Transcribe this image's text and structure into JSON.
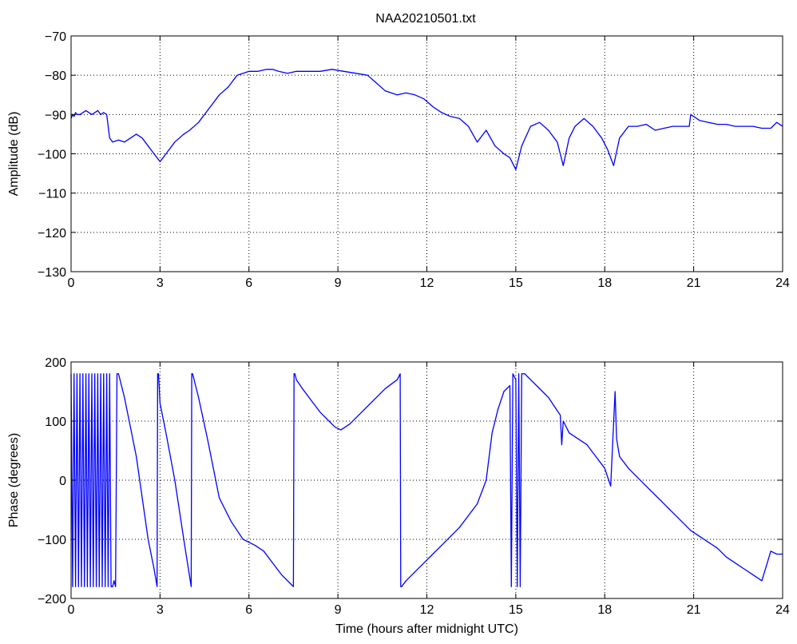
{
  "figure": {
    "title": "NAA20210501.txt"
  },
  "chart_data": [
    {
      "type": "line",
      "title": "NAA20210501.txt",
      "xlabel": "",
      "ylabel": "Amplitude (dB)",
      "xlim": [
        0,
        24
      ],
      "ylim": [
        -130,
        -70
      ],
      "xticks": [
        0,
        3,
        6,
        9,
        12,
        15,
        18,
        21,
        24
      ],
      "xtick_labels": [
        "0",
        "3",
        "6",
        "9",
        "12",
        "15",
        "18",
        "21",
        "24"
      ],
      "yticks": [
        -70,
        -80,
        -90,
        -100,
        -110,
        -120,
        -130
      ],
      "ytick_labels": [
        "−70",
        "−80",
        "−90",
        "−100",
        "−110",
        "−120",
        "−130"
      ],
      "grid": true,
      "color": "#0000ff",
      "series": [
        {
          "x": [
            0.0,
            0.05,
            0.1,
            0.15,
            0.2,
            0.3,
            0.4,
            0.5,
            0.6,
            0.7,
            0.8,
            0.9,
            1.0,
            1.1,
            1.2,
            1.3,
            1.4,
            1.6,
            1.8,
            2.0,
            2.2,
            2.4,
            2.6,
            2.8,
            3.0,
            3.2,
            3.5,
            3.8,
            4.0,
            4.3,
            4.6,
            4.9,
            5.0,
            5.3,
            5.6,
            6.0,
            6.3,
            6.6,
            6.8,
            7.0,
            7.3,
            7.6,
            8.0,
            8.4,
            8.8,
            9.2,
            9.6,
            10.0,
            10.3,
            10.6,
            11.0,
            11.3,
            11.6,
            11.9,
            12.2,
            12.5,
            12.8,
            13.1,
            13.4,
            13.7,
            14.0,
            14.3,
            14.6,
            14.8,
            15.0,
            15.2,
            15.5,
            15.8,
            16.1,
            16.4,
            16.6,
            16.8,
            17.0,
            17.3,
            17.6,
            17.9,
            18.1,
            18.3,
            18.5,
            18.8,
            19.1,
            19.4,
            19.7,
            20.0,
            20.3,
            20.6,
            20.85,
            20.9,
            21.2,
            21.5,
            21.8,
            22.1,
            22.4,
            22.7,
            23.0,
            23.3,
            23.6,
            23.8,
            24.0
          ],
          "y": [
            -91,
            -90,
            -90.5,
            -89.5,
            -90,
            -90,
            -89.5,
            -89,
            -89.5,
            -90,
            -89.5,
            -89,
            -90,
            -89.5,
            -90,
            -96,
            -97,
            -96.5,
            -97,
            -96,
            -95,
            -96,
            -98,
            -100,
            -102,
            -100,
            -97,
            -95,
            -94,
            -92,
            -89,
            -86,
            -85,
            -83,
            -80,
            -79,
            -79,
            -78.5,
            -78.5,
            -79,
            -79.5,
            -79,
            -79,
            -79,
            -78.5,
            -79,
            -79.5,
            -80,
            -82,
            -84,
            -85,
            -84.5,
            -85,
            -86,
            -88,
            -89.5,
            -90.5,
            -91,
            -93,
            -97,
            -94,
            -98,
            -100,
            -101,
            -104,
            -98,
            -93,
            -92,
            -94,
            -97,
            -103,
            -96,
            -93,
            -91,
            -93,
            -96,
            -99,
            -103,
            -96,
            -93,
            -93,
            -92.5,
            -94,
            -93.5,
            -93,
            -93,
            -93,
            -90,
            -91.5,
            -92,
            -92.5,
            -92.5,
            -93,
            -93,
            -93,
            -93.5,
            -93.5,
            -92,
            -93
          ]
        }
      ]
    },
    {
      "type": "line",
      "title": "",
      "xlabel": "Time (hours after midnight UTC)",
      "ylabel": "Phase (degrees)",
      "xlim": [
        0,
        24
      ],
      "ylim": [
        -200,
        200
      ],
      "xticks": [
        0,
        3,
        6,
        9,
        12,
        15,
        18,
        21,
        24
      ],
      "xtick_labels": [
        "0",
        "3",
        "6",
        "9",
        "12",
        "15",
        "18",
        "21",
        "24"
      ],
      "yticks": [
        200,
        100,
        0,
        -100,
        -200
      ],
      "ytick_labels": [
        "200",
        "100",
        "0",
        "−100",
        "−200"
      ],
      "grid": true,
      "color": "#0000ff",
      "series": [
        {
          "x": [
            0.0,
            0.05,
            0.1,
            0.15,
            0.2,
            0.25,
            0.3,
            0.35,
            0.4,
            0.45,
            0.5,
            0.55,
            0.6,
            0.65,
            0.7,
            0.75,
            0.8,
            0.85,
            0.9,
            0.95,
            1.0,
            1.05,
            1.1,
            1.15,
            1.2,
            1.25,
            1.3,
            1.35,
            1.4,
            1.45,
            1.5,
            1.55,
            1.6,
            1.8,
            2.0,
            2.2,
            2.4,
            2.6,
            2.8,
            2.9,
            2.92,
            2.95,
            3.0,
            3.2,
            3.5,
            3.8,
            4.05,
            4.07,
            4.1,
            4.3,
            4.6,
            5.0,
            5.4,
            5.8,
            6.2,
            6.5,
            6.8,
            7.1,
            7.4,
            7.5,
            7.52,
            7.55,
            7.6,
            7.8,
            8.1,
            8.4,
            8.7,
            8.9,
            9.1,
            9.4,
            9.8,
            10.2,
            10.6,
            11.0,
            11.1,
            11.12,
            11.15,
            11.3,
            11.6,
            11.9,
            12.2,
            12.5,
            12.8,
            13.1,
            13.4,
            13.7,
            14.0,
            14.2,
            14.4,
            14.6,
            14.8,
            14.85,
            14.9,
            15.0,
            15.05,
            15.1,
            15.15,
            15.2,
            15.3,
            15.4,
            15.5,
            15.7,
            15.9,
            16.1,
            16.3,
            16.5,
            16.55,
            16.6,
            16.8,
            17.1,
            17.4,
            17.7,
            18.0,
            18.2,
            18.35,
            18.4,
            18.5,
            18.8,
            19.1,
            19.4,
            19.7,
            20.0,
            20.3,
            20.6,
            20.9,
            21.2,
            21.5,
            21.8,
            22.1,
            22.4,
            22.7,
            23.0,
            23.3,
            23.6,
            23.8,
            24.0
          ],
          "y": [
            180,
            -180,
            180,
            -180,
            180,
            -180,
            180,
            -180,
            180,
            -180,
            180,
            -180,
            180,
            -180,
            180,
            -180,
            180,
            -180,
            180,
            -180,
            180,
            -180,
            180,
            -180,
            180,
            -180,
            180,
            -180,
            -180,
            -170,
            -180,
            180,
            180,
            140,
            90,
            40,
            -30,
            -100,
            -150,
            -180,
            180,
            180,
            130,
            80,
            0,
            -100,
            -180,
            180,
            180,
            140,
            70,
            -30,
            -70,
            -100,
            -110,
            -120,
            -140,
            -160,
            -175,
            -180,
            180,
            180,
            170,
            155,
            135,
            115,
            100,
            90,
            85,
            95,
            115,
            135,
            155,
            170,
            180,
            -180,
            -180,
            -170,
            -155,
            -140,
            -125,
            -110,
            -95,
            -80,
            -60,
            -40,
            0,
            80,
            120,
            150,
            160,
            -180,
            180,
            170,
            -180,
            180,
            -180,
            180,
            180,
            175,
            170,
            160,
            150,
            140,
            125,
            110,
            60,
            100,
            80,
            70,
            60,
            40,
            20,
            -10,
            150,
            70,
            40,
            20,
            5,
            -10,
            -25,
            -40,
            -55,
            -70,
            -85,
            -95,
            -105,
            -115,
            -130,
            -140,
            -150,
            -160,
            -170,
            -120,
            -125,
            -125
          ]
        }
      ]
    }
  ]
}
